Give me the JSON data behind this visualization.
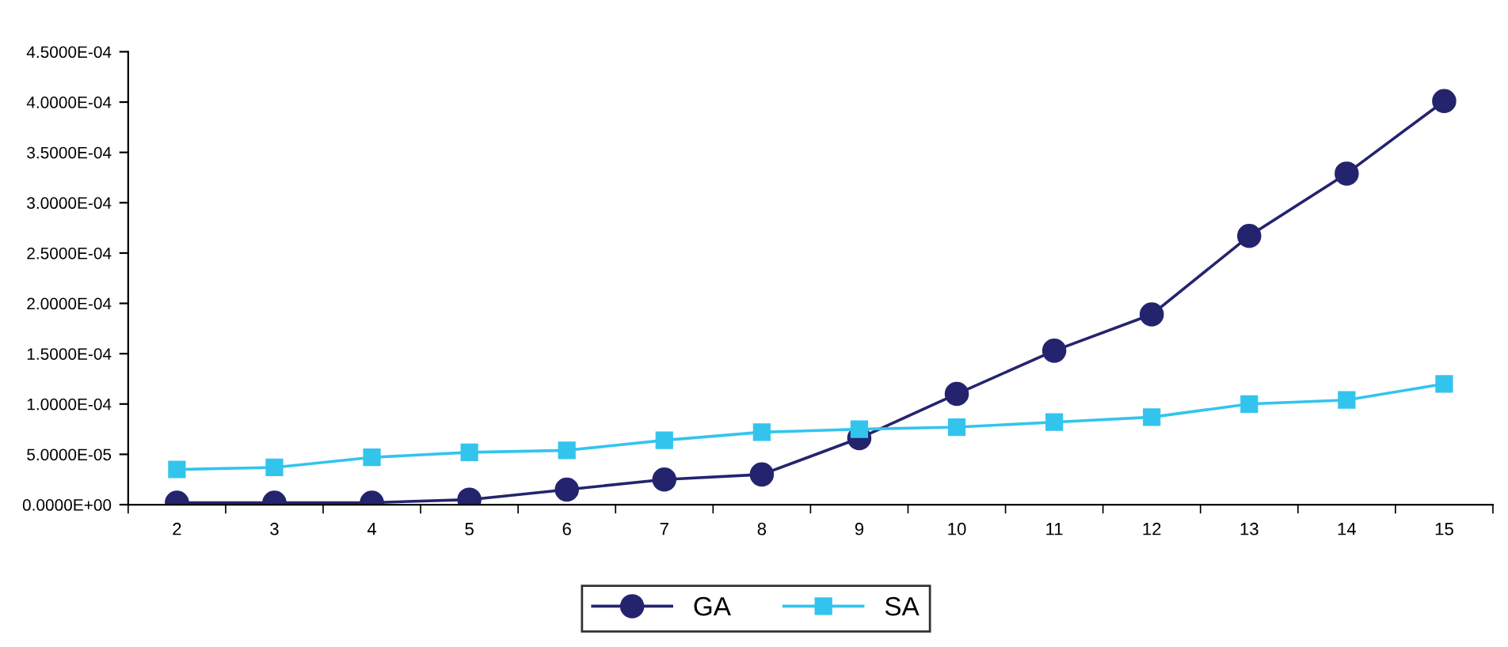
{
  "chart_data": {
    "type": "line",
    "categories": [
      "2",
      "3",
      "4",
      "5",
      "6",
      "7",
      "8",
      "9",
      "10",
      "11",
      "12",
      "13",
      "14",
      "15"
    ],
    "series": [
      {
        "name": "GA",
        "color": "#24246e",
        "marker": "circle",
        "values": [
          2e-06,
          2e-06,
          2e-06,
          5e-06,
          1.5e-05,
          2.5e-05,
          3e-05,
          6.6e-05,
          0.00011,
          0.000153,
          0.000189,
          0.000267,
          0.000329,
          0.000401
        ]
      },
      {
        "name": "SA",
        "color": "#33c4ee",
        "marker": "square",
        "values": [
          3.5e-05,
          3.7e-05,
          4.7e-05,
          5.2e-05,
          5.4e-05,
          6.4e-05,
          7.2e-05,
          7.5e-05,
          7.7e-05,
          8.2e-05,
          8.7e-05,
          0.0001,
          0.000104,
          0.00012
        ]
      }
    ],
    "ylim": [
      0,
      0.00045
    ],
    "yticks": [
      {
        "value": 0,
        "label": "0.0000E+00"
      },
      {
        "value": 5e-05,
        "label": "5.0000E-05"
      },
      {
        "value": 0.0001,
        "label": "1.0000E-04"
      },
      {
        "value": 0.00015,
        "label": "1.5000E-04"
      },
      {
        "value": 0.0002,
        "label": "2.0000E-04"
      },
      {
        "value": 0.00025,
        "label": "2.5000E-04"
      },
      {
        "value": 0.0003,
        "label": "3.0000E-04"
      },
      {
        "value": 0.00035,
        "label": "3.5000E-04"
      },
      {
        "value": 0.0004,
        "label": "4.0000E-04"
      },
      {
        "value": 0.00045,
        "label": "4.5000E-04"
      }
    ],
    "grid": false,
    "legend": "bottom",
    "line_style": "solid"
  }
}
